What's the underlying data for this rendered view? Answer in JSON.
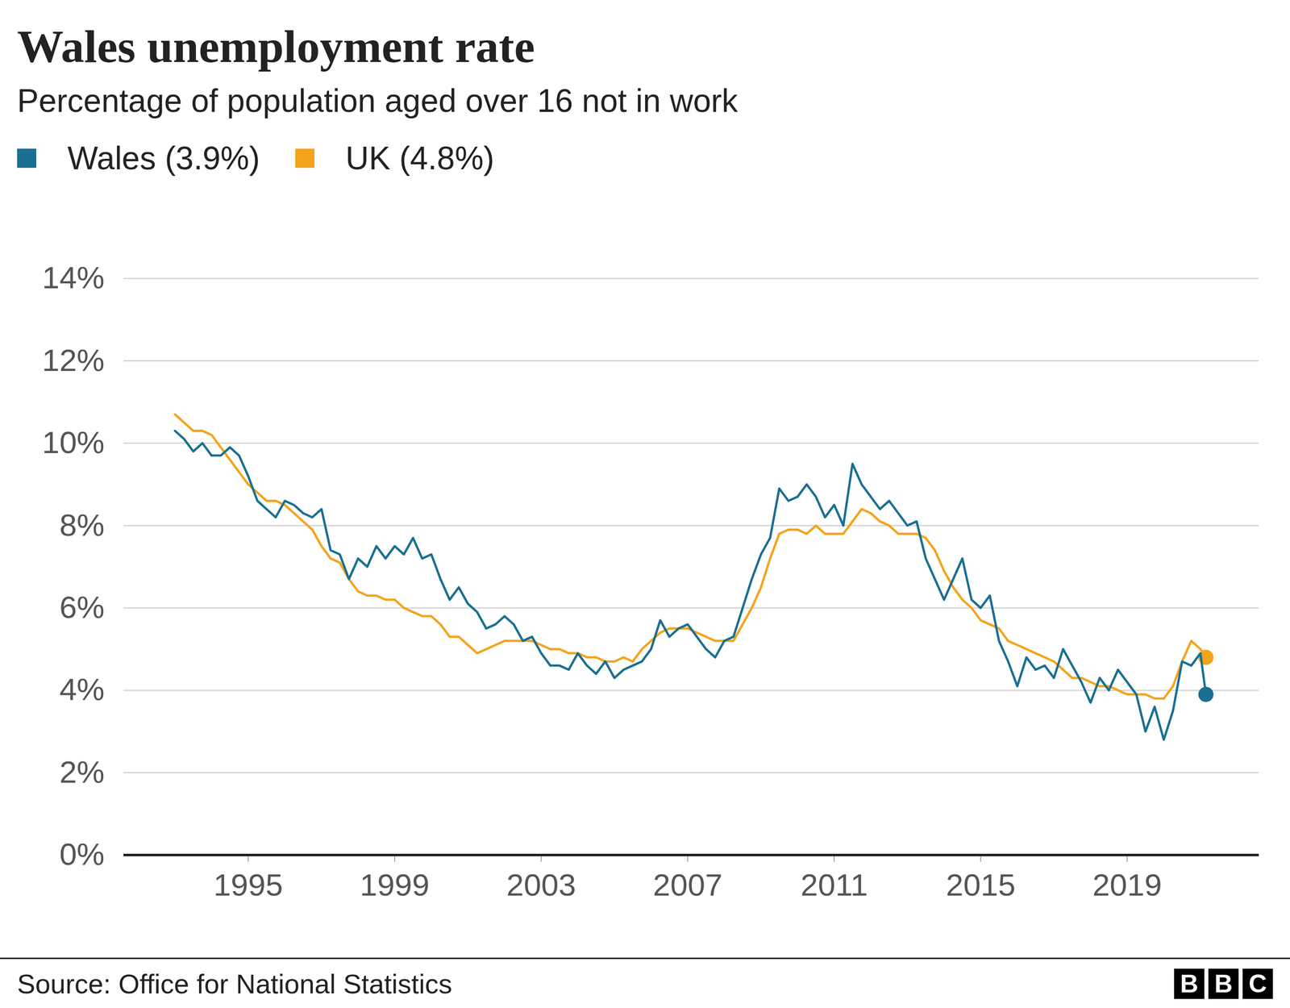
{
  "chart_data": {
    "type": "line",
    "title": "Wales unemployment rate",
    "subtitle": "Percentage of population aged over 16 not in work",
    "source": "Source: Office for National Statistics",
    "logo": "BBC",
    "x": [
      1993,
      1993.25,
      1993.5,
      1993.75,
      1994,
      1994.25,
      1994.5,
      1994.75,
      1995,
      1995.25,
      1995.5,
      1995.75,
      1996,
      1996.25,
      1996.5,
      1996.75,
      1997,
      1997.25,
      1997.5,
      1997.75,
      1998,
      1998.25,
      1998.5,
      1998.75,
      1999,
      1999.25,
      1999.5,
      1999.75,
      2000,
      2000.25,
      2000.5,
      2000.75,
      2001,
      2001.25,
      2001.5,
      2001.75,
      2002,
      2002.25,
      2002.5,
      2002.75,
      2003,
      2003.25,
      2003.5,
      2003.75,
      2004,
      2004.25,
      2004.5,
      2004.75,
      2005,
      2005.25,
      2005.5,
      2005.75,
      2006,
      2006.25,
      2006.5,
      2006.75,
      2007,
      2007.25,
      2007.5,
      2007.75,
      2008,
      2008.25,
      2008.5,
      2008.75,
      2009,
      2009.25,
      2009.5,
      2009.75,
      2010,
      2010.25,
      2010.5,
      2010.75,
      2011,
      2011.25,
      2011.5,
      2011.75,
      2012,
      2012.25,
      2012.5,
      2012.75,
      2013,
      2013.25,
      2013.5,
      2013.75,
      2014,
      2014.25,
      2014.5,
      2014.75,
      2015,
      2015.25,
      2015.5,
      2015.75,
      2016,
      2016.25,
      2016.5,
      2016.75,
      2017,
      2017.25,
      2017.5,
      2017.75,
      2018,
      2018.25,
      2018.5,
      2018.75,
      2019,
      2019.25,
      2019.5,
      2019.75,
      2020,
      2020.25,
      2020.5,
      2020.75,
      2021,
      2021.15
    ],
    "series": [
      {
        "name": "Wales (3.9%)",
        "color": "#1a6f91",
        "values": [
          10.3,
          10.1,
          9.8,
          10.0,
          9.7,
          9.7,
          9.9,
          9.7,
          9.2,
          8.6,
          8.4,
          8.2,
          8.6,
          8.5,
          8.3,
          8.2,
          8.4,
          7.4,
          7.3,
          6.7,
          7.2,
          7.0,
          7.5,
          7.2,
          7.5,
          7.3,
          7.7,
          7.2,
          7.3,
          6.7,
          6.2,
          6.5,
          6.1,
          5.9,
          5.5,
          5.6,
          5.8,
          5.6,
          5.2,
          5.3,
          4.9,
          4.6,
          4.6,
          4.5,
          4.9,
          4.6,
          4.4,
          4.7,
          4.3,
          4.5,
          4.6,
          4.7,
          5.0,
          5.7,
          5.3,
          5.5,
          5.6,
          5.3,
          5.0,
          4.8,
          5.2,
          5.3,
          6.0,
          6.7,
          7.3,
          7.7,
          8.9,
          8.6,
          8.7,
          9.0,
          8.7,
          8.2,
          8.5,
          8.0,
          9.5,
          9.0,
          8.7,
          8.4,
          8.6,
          8.3,
          8.0,
          8.1,
          7.2,
          6.7,
          6.2,
          6.7,
          7.2,
          6.2,
          6.0,
          6.3,
          5.2,
          4.7,
          4.1,
          4.8,
          4.5,
          4.6,
          4.3,
          5.0,
          4.6,
          4.2,
          3.7,
          4.3,
          4.0,
          4.5,
          4.2,
          3.9,
          3.0,
          3.6,
          2.8,
          3.5,
          4.7,
          4.6,
          4.9,
          3.9
        ]
      },
      {
        "name": "UK (4.8%)",
        "color": "#f5a31a",
        "values": [
          10.7,
          10.5,
          10.3,
          10.3,
          10.2,
          9.9,
          9.6,
          9.3,
          9.0,
          8.8,
          8.6,
          8.6,
          8.5,
          8.3,
          8.1,
          7.9,
          7.5,
          7.2,
          7.1,
          6.7,
          6.4,
          6.3,
          6.3,
          6.2,
          6.2,
          6.0,
          5.9,
          5.8,
          5.8,
          5.6,
          5.3,
          5.3,
          5.1,
          4.9,
          5.0,
          5.1,
          5.2,
          5.2,
          5.2,
          5.2,
          5.1,
          5.0,
          5.0,
          4.9,
          4.9,
          4.8,
          4.8,
          4.7,
          4.7,
          4.8,
          4.7,
          5.0,
          5.2,
          5.4,
          5.5,
          5.5,
          5.5,
          5.4,
          5.3,
          5.2,
          5.2,
          5.2,
          5.6,
          6.0,
          6.5,
          7.2,
          7.8,
          7.9,
          7.9,
          7.8,
          8.0,
          7.8,
          7.8,
          7.8,
          8.1,
          8.4,
          8.3,
          8.1,
          8.0,
          7.8,
          7.8,
          7.8,
          7.7,
          7.4,
          6.9,
          6.5,
          6.2,
          6.0,
          5.7,
          5.6,
          5.5,
          5.2,
          5.1,
          5.0,
          4.9,
          4.8,
          4.7,
          4.5,
          4.3,
          4.3,
          4.2,
          4.1,
          4.1,
          4.0,
          3.9,
          3.9,
          3.9,
          3.8,
          3.8,
          4.1,
          4.7,
          5.2,
          5.0,
          4.8
        ]
      }
    ],
    "xlim": [
      1991.6,
      2022.6
    ],
    "xticks": [
      1995,
      1999,
      2003,
      2007,
      2011,
      2015,
      2019
    ],
    "ylim": [
      0,
      14
    ],
    "yticks": [
      {
        "value": 0,
        "label": "0%"
      },
      {
        "value": 2,
        "label": "2%"
      },
      {
        "value": 4,
        "label": "4%"
      },
      {
        "value": 6,
        "label": "6%"
      },
      {
        "value": 8,
        "label": "8%"
      },
      {
        "value": 10,
        "label": "10%"
      },
      {
        "value": 12,
        "label": "12%"
      },
      {
        "value": 14,
        "label": "14%"
      }
    ],
    "grid": true,
    "legend": "top",
    "marker": "last"
  }
}
